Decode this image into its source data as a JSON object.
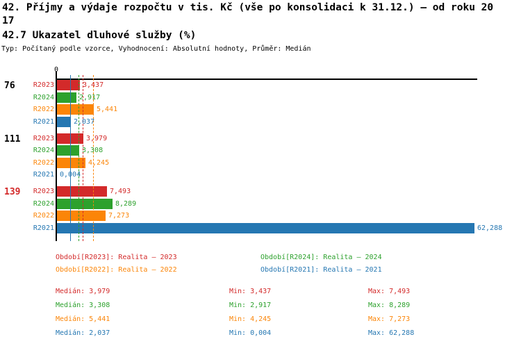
{
  "header": {
    "title_line1": "42. Příjmy a výdaje rozpočtu v tis. Kč (vše po konsolidaci k 31.12.) – od roku 20",
    "title_line2": "17",
    "subtitle": "42.7 Ukazatel dluhové služby (%)",
    "meta": "Typ: Počítaný podle vzorce, Vyhodnocení: Absolutní hodnoty, Průměr: Medián"
  },
  "chart_data": {
    "type": "bar",
    "orientation": "horizontal",
    "title": "42.7 Ukazatel dluhové služby (%)",
    "xlim": [
      0,
      62.8
    ],
    "axis_origin_label": "0",
    "grid": false,
    "series_order": [
      "R2023",
      "R2024",
      "R2022",
      "R2021"
    ],
    "series_colors": {
      "R2023": "#d32a2a",
      "R2024": "#2da12d",
      "R2022": "#fb8508",
      "R2021": "#2577b2"
    },
    "median_lines": {
      "R2023": 3.979,
      "R2024": 3.308,
      "R2022": 5.441,
      "R2021": 2.037
    },
    "groups": [
      {
        "label": "76",
        "label_color": "#000000",
        "values": {
          "R2023": 3.437,
          "R2024": 2.917,
          "R2022": 5.441,
          "R2021": 2.037
        },
        "display": {
          "R2023": "3,437",
          "R2024": "2,917",
          "R2022": "5,441",
          "R2021": "2,037"
        }
      },
      {
        "label": "111",
        "label_color": "#000000",
        "values": {
          "R2023": 3.979,
          "R2024": 3.308,
          "R2022": 4.245,
          "R2021": 0.004
        },
        "display": {
          "R2023": "3,979",
          "R2024": "3,308",
          "R2022": "4,245",
          "R2021": "0,004"
        }
      },
      {
        "label": "139",
        "label_color": "#d32a2a",
        "values": {
          "R2023": 7.493,
          "R2024": 8.289,
          "R2022": 7.273,
          "R2021": 62.288
        },
        "display": {
          "R2023": "7,493",
          "R2024": "8,289",
          "R2022": "7,273",
          "R2021": "62,288"
        }
      }
    ]
  },
  "legend": {
    "items": [
      {
        "series": "R2023",
        "text": "Období[R2023]: Realita – 2023"
      },
      {
        "series": "R2024",
        "text": "Období[R2024]: Realita – 2024"
      },
      {
        "series": "R2022",
        "text": "Období[R2022]: Realita – 2022"
      },
      {
        "series": "R2021",
        "text": "Období[R2021]: Realita – 2021"
      }
    ]
  },
  "stats": {
    "rows": [
      {
        "series": "R2023",
        "median": "Medián: 3,979",
        "min": "Min: 3,437",
        "max": "Max: 7,493"
      },
      {
        "series": "R2024",
        "median": "Medián: 3,308",
        "min": "Min: 2,917",
        "max": "Max: 8,289"
      },
      {
        "series": "R2022",
        "median": "Medián: 5,441",
        "min": "Min: 4,245",
        "max": "Max: 7,273"
      },
      {
        "series": "R2021",
        "median": "Medián: 2,037",
        "min": "Min: 0,004",
        "max": "Max: 62,288"
      }
    ]
  }
}
